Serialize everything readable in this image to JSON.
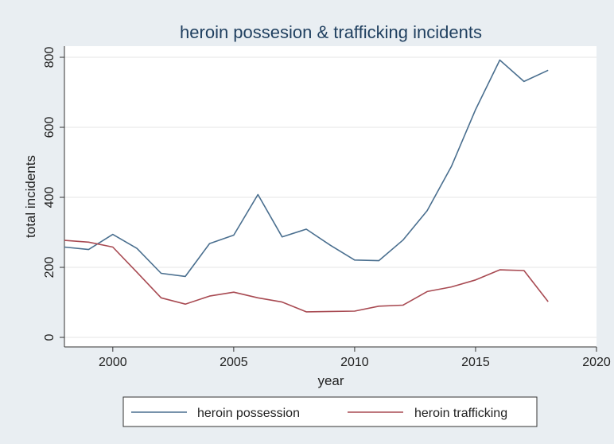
{
  "chart_data": {
    "type": "line",
    "title": "heroin possesion & trafficking incidents",
    "xlabel": "year",
    "ylabel": "total incidents",
    "xlim": [
      1998,
      2020
    ],
    "ylim": [
      0,
      800
    ],
    "xticks": [
      2000,
      2005,
      2010,
      2015,
      2020
    ],
    "yticks": [
      0,
      200,
      400,
      600,
      800
    ],
    "grid": true,
    "legend_position": "bottom",
    "x": [
      1998,
      1999,
      2000,
      2001,
      2002,
      2003,
      2004,
      2005,
      2006,
      2007,
      2008,
      2009,
      2010,
      2011,
      2012,
      2013,
      2014,
      2015,
      2016,
      2017,
      2018
    ],
    "series": [
      {
        "name": "heroin possession",
        "color": "#4a6f8f",
        "values": [
          258,
          251,
          294,
          254,
          183,
          174,
          268,
          292,
          408,
          287,
          309,
          263,
          221,
          219,
          278,
          362,
          488,
          651,
          792,
          731,
          763
        ]
      },
      {
        "name": "heroin trafficking",
        "color": "#a84a52",
        "values": [
          277,
          272,
          258,
          186,
          113,
          95,
          118,
          129,
          113,
          101,
          73,
          74,
          75,
          89,
          92,
          131,
          144,
          164,
          193,
          191,
          102
        ]
      }
    ]
  }
}
